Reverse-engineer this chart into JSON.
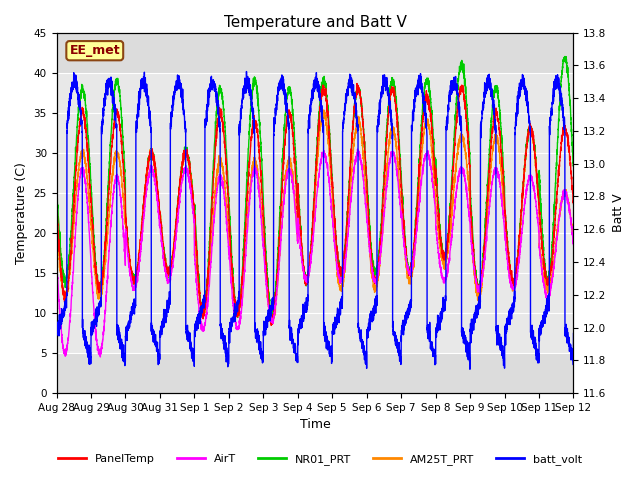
{
  "title": "Temperature and Batt V",
  "xlabel": "Time",
  "ylabel_left": "Temperature (C)",
  "ylabel_right": "Batt V",
  "ylim_left": [
    0,
    45
  ],
  "ylim_right": [
    11.6,
    13.8
  ],
  "annotation_text": "EE_met",
  "annotation_color": "#8B0000",
  "annotation_bg": "#FFFF99",
  "annotation_border": "#8B4513",
  "series_colors": {
    "PanelTemp": "#FF0000",
    "AirT": "#FF00FF",
    "NR01_PRT": "#00CC00",
    "AM25T_PRT": "#FF8800",
    "batt_volt": "#0000FF"
  },
  "legend_labels": [
    "PanelTemp",
    "AirT",
    "NR01_PRT",
    "AM25T_PRT",
    "batt_volt"
  ],
  "x_tick_labels": [
    "Aug 28",
    "Aug 29",
    "Aug 30",
    "Aug 31",
    "Sep 1",
    "Sep 2",
    "Sep 3",
    "Sep 4",
    "Sep 5",
    "Sep 6",
    "Sep 7",
    "Sep 8",
    "Sep 9",
    "Sep 10",
    "Sep 11",
    "Sep 12"
  ],
  "background_color": "#DCDCDC",
  "span_color": "#E8E8E8",
  "title_fontsize": 11,
  "tick_fontsize": 7.5,
  "label_fontsize": 9,
  "linewidth": 1.0
}
